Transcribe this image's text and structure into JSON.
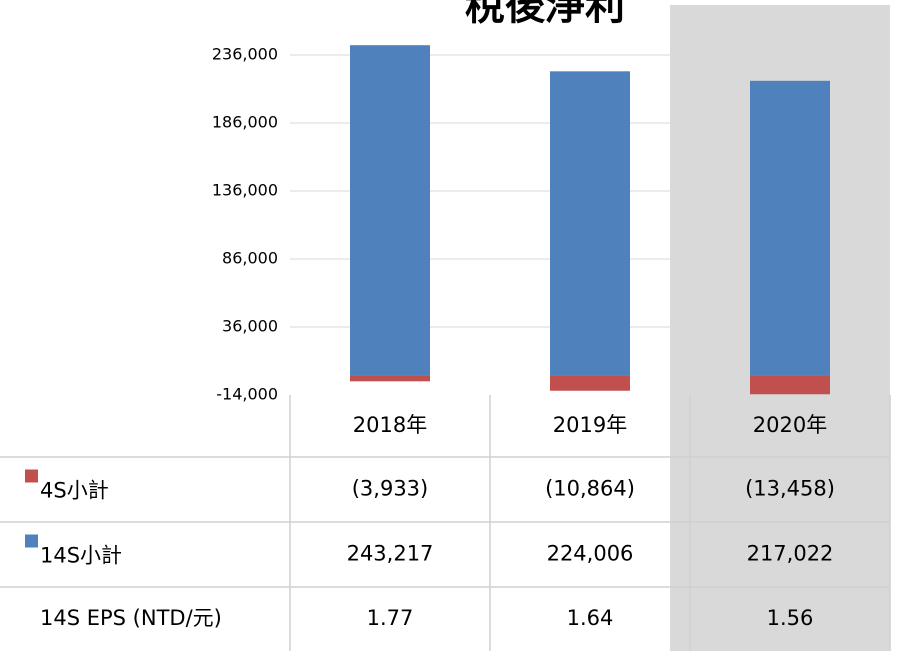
{
  "chart_data": {
    "type": "bar",
    "stacked": true,
    "title": "稅後淨利",
    "categories": [
      "2018年",
      "2019年",
      "2020年"
    ],
    "series": [
      {
        "name": "4S小計",
        "color": "#c0504d",
        "values": [
          -3933,
          -10864,
          -13458
        ],
        "value_labels": [
          "(3,933)",
          "(10,864)",
          "(13,458)"
        ]
      },
      {
        "name": "14S小計",
        "color": "#4f81bd",
        "values": [
          243217,
          224006,
          217022
        ],
        "value_labels": [
          "243,217",
          "224,006",
          "217,022"
        ]
      }
    ],
    "table_rows": [
      {
        "name": "14S EPS (NTD/元)",
        "values": [
          1.77,
          1.64,
          1.56
        ]
      }
    ],
    "ylim": [
      -14000,
      236000
    ],
    "yticks": [
      {
        "value": -14000,
        "label": "-14,000"
      },
      {
        "value": 36000,
        "label": "36,000"
      },
      {
        "value": 86000,
        "label": "86,000"
      },
      {
        "value": 136000,
        "label": "136,000"
      },
      {
        "value": 186000,
        "label": "186,000"
      },
      {
        "value": 236000,
        "label": "236,000"
      }
    ],
    "grid": true
  }
}
